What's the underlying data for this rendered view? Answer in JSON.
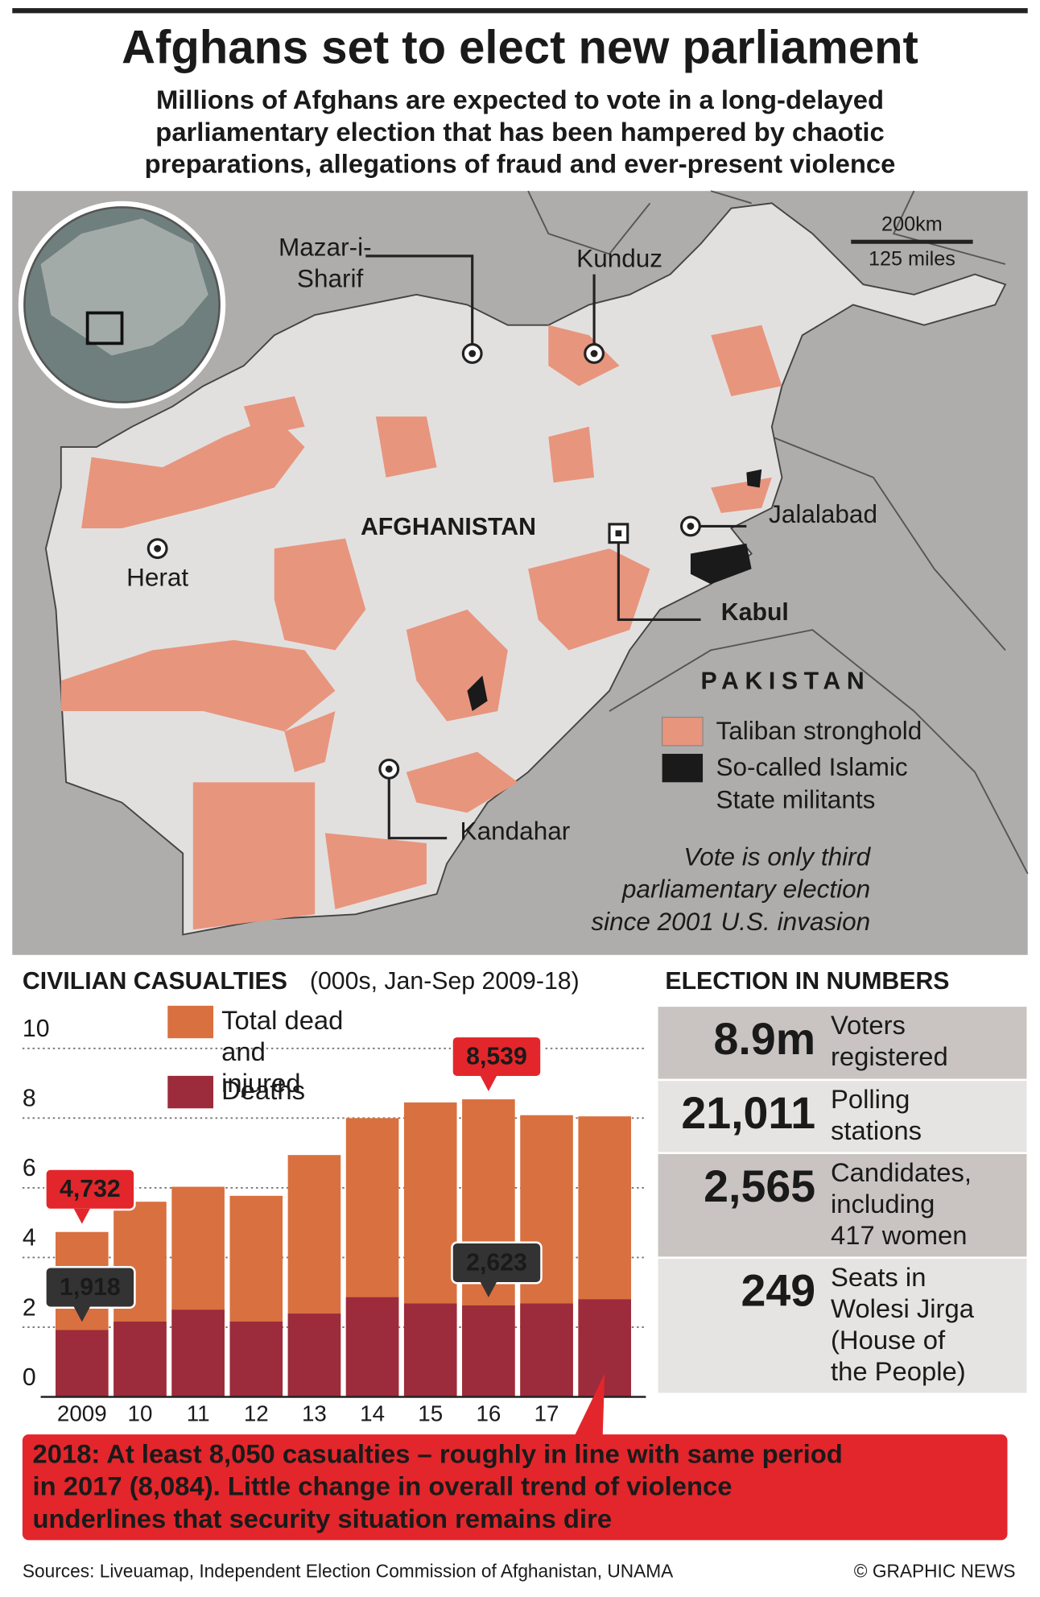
{
  "header": {
    "title": "Afghans set to elect new parliament",
    "subtitle": [
      "Millions of Afghans are expected to vote in a long-delayed",
      "parliamentary election that has been hampered by chaotic",
      "preparations, allegations of fraud and ever-present violence"
    ]
  },
  "map": {
    "cities": [
      "Mazar-i-",
      "Sharif",
      "Kunduz",
      "Herat",
      "Jalalabad",
      "Kandahar"
    ],
    "country": "AFGHANISTAN",
    "capital": "Kabul",
    "neighbour": "PAKISTAN",
    "scale": [
      "200km",
      "125 miles"
    ],
    "legend": [
      [
        "Taliban stronghold"
      ],
      [
        "So-called Islamic",
        "State militants"
      ]
    ],
    "note": [
      "Vote is only third",
      "parliamentary election",
      "since 2001 U.S. invasion"
    ]
  },
  "chart_data": {
    "type": "bar",
    "title": "CIVILIAN CASUALTIES",
    "subtitle": "(000s, Jan-Sep 2009-18)",
    "categories": [
      "2009",
      "10",
      "11",
      "12",
      "13",
      "14",
      "15",
      "16",
      "17",
      null
    ],
    "series": [
      {
        "name": "Total dead and injured",
        "color": "#d9703f",
        "label_color": "#e3262b",
        "values": [
          4.732,
          5.6,
          6.03,
          5.77,
          6.94,
          8.0,
          8.45,
          8.539,
          8.084,
          8.05
        ],
        "value_labels": [
          "4,732",
          null,
          null,
          null,
          null,
          null,
          null,
          "8,539",
          null,
          null
        ]
      },
      {
        "name": "Deaths",
        "color": "#9c2b3c",
        "label_color": "#333333",
        "values": [
          1.918,
          2.16,
          2.5,
          2.16,
          2.39,
          2.86,
          2.68,
          2.623,
          2.68,
          2.8
        ],
        "value_labels": [
          "1,918",
          null,
          null,
          null,
          null,
          null,
          null,
          "2,623",
          null,
          null
        ]
      }
    ],
    "ylim": [
      0,
      10
    ],
    "yticks": [
      0,
      2,
      4,
      6,
      8,
      10
    ],
    "grid": true,
    "annotation": [
      "2018: At least 8,050 casualties – roughly in line with same period",
      "in 2017 (8,084). Little change in overall trend of violence",
      "underlines that security situation remains dire"
    ]
  },
  "election": {
    "title": "ELECTION IN NUMBERS",
    "rows": [
      {
        "number": "8.9m",
        "label": [
          "Voters",
          "registered"
        ]
      },
      {
        "number": "21,011",
        "label": [
          "Polling",
          "stations"
        ]
      },
      {
        "number": "2,565",
        "label": [
          "Candidates,",
          "including",
          "417 women"
        ]
      },
      {
        "number": "249",
        "label": [
          "Seats in",
          "Wolesi Jirga",
          "(House of",
          "the People)"
        ]
      }
    ]
  },
  "footer": {
    "sources": "Sources: Liveuamap, Independent Election Commission of Afghanistan, UNAMA",
    "credit": "© GRAPHIC NEWS"
  }
}
